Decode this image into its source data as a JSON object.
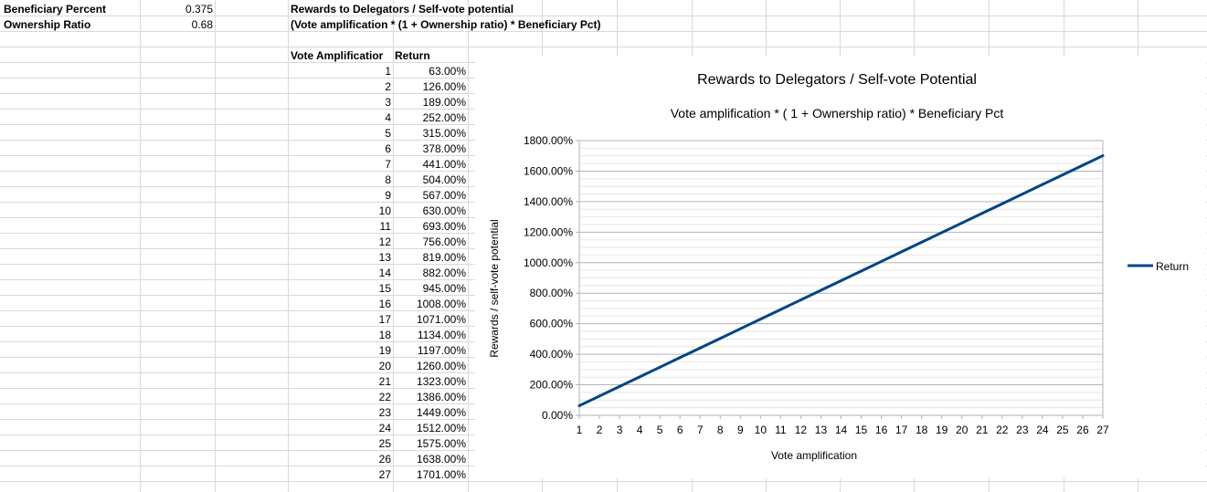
{
  "params": {
    "beneficiary_label": "Beneficiary Percent",
    "beneficiary_value": "0.375",
    "ownership_label": "Ownership Ratio",
    "ownership_value": "0.68"
  },
  "heading": {
    "title": "Rewards to Delegators / Self-vote potential",
    "formula": "(Vote amplification * (1 + Ownership ratio) * Beneficiary Pct)"
  },
  "table": {
    "col_amp": "Vote Amplificatior",
    "col_return": "Return",
    "rows": [
      [
        "1",
        "63.00%"
      ],
      [
        "2",
        "126.00%"
      ],
      [
        "3",
        "189.00%"
      ],
      [
        "4",
        "252.00%"
      ],
      [
        "5",
        "315.00%"
      ],
      [
        "6",
        "378.00%"
      ],
      [
        "7",
        "441.00%"
      ],
      [
        "8",
        "504.00%"
      ],
      [
        "9",
        "567.00%"
      ],
      [
        "10",
        "630.00%"
      ],
      [
        "11",
        "693.00%"
      ],
      [
        "12",
        "756.00%"
      ],
      [
        "13",
        "819.00%"
      ],
      [
        "14",
        "882.00%"
      ],
      [
        "15",
        "945.00%"
      ],
      [
        "16",
        "1008.00%"
      ],
      [
        "17",
        "1071.00%"
      ],
      [
        "18",
        "1134.00%"
      ],
      [
        "19",
        "1197.00%"
      ],
      [
        "20",
        "1260.00%"
      ],
      [
        "21",
        "1323.00%"
      ],
      [
        "22",
        "1386.00%"
      ],
      [
        "23",
        "1449.00%"
      ],
      [
        "24",
        "1512.00%"
      ],
      [
        "25",
        "1575.00%"
      ],
      [
        "26",
        "1638.00%"
      ],
      [
        "27",
        "1701.00%"
      ]
    ]
  },
  "chart_data": {
    "type": "line",
    "title": "Rewards to Delegators / Self-vote Potential",
    "subtitle": "Vote amplification * ( 1 + Ownership ratio) * Beneficiary Pct",
    "xlabel": "Vote amplification",
    "ylabel": "Rewards / self-vote potential",
    "x": [
      1,
      2,
      3,
      4,
      5,
      6,
      7,
      8,
      9,
      10,
      11,
      12,
      13,
      14,
      15,
      16,
      17,
      18,
      19,
      20,
      21,
      22,
      23,
      24,
      25,
      26,
      27
    ],
    "series": [
      {
        "name": "Return",
        "values": [
          63,
          126,
          189,
          252,
          315,
          378,
          441,
          504,
          567,
          630,
          693,
          756,
          819,
          882,
          945,
          1008,
          1071,
          1134,
          1197,
          1260,
          1323,
          1386,
          1449,
          1512,
          1575,
          1638,
          1701
        ]
      }
    ],
    "ylim": [
      0,
      1800
    ],
    "yticks": [
      "0.00%",
      "200.00%",
      "400.00%",
      "600.00%",
      "800.00%",
      "1000.00%",
      "1200.00%",
      "1400.00%",
      "1600.00%",
      "1800.00%"
    ],
    "grid": true,
    "legend": "right",
    "line_color": "#004586"
  }
}
